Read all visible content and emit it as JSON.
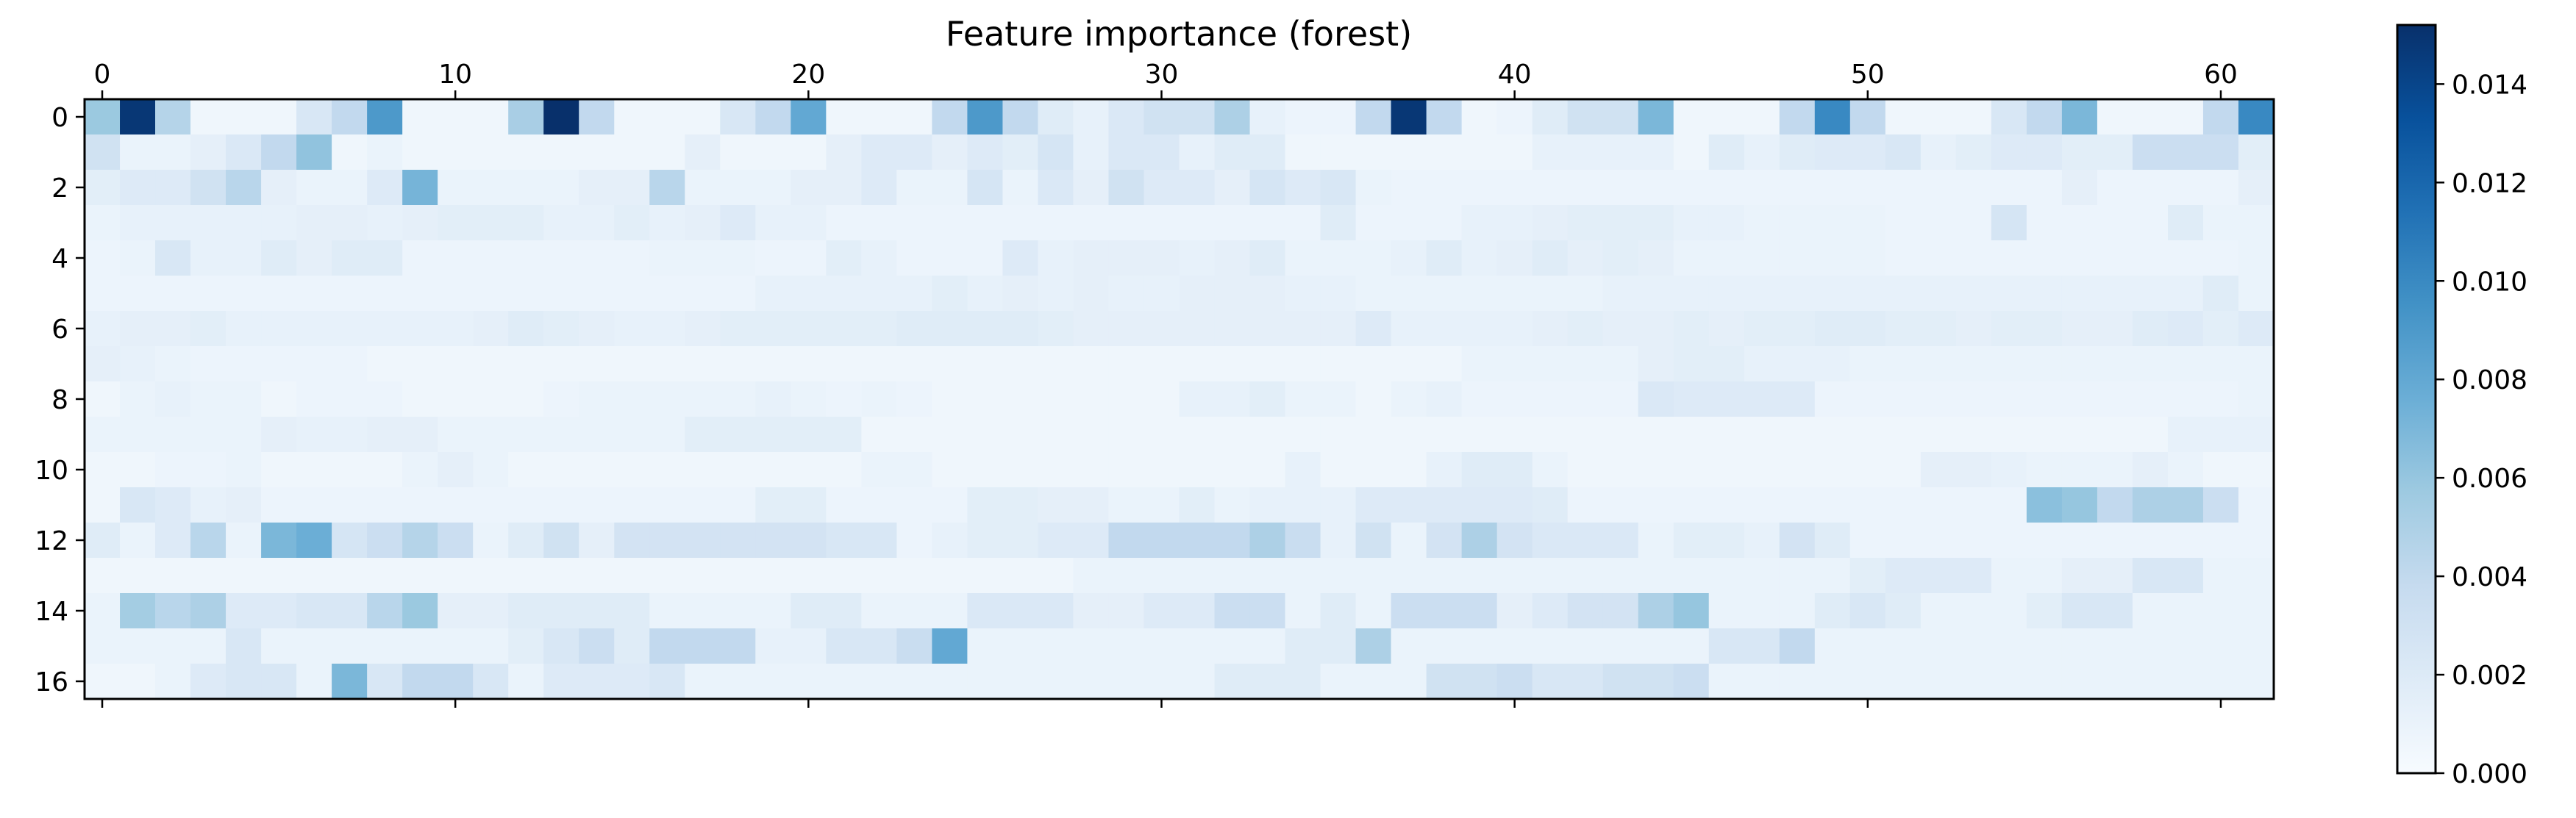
{
  "chart_data": {
    "type": "heatmap",
    "title": "Feature importance (forest)",
    "xlabel": "",
    "ylabel": "",
    "x_ticks": [
      0,
      10,
      20,
      30,
      40,
      50,
      60
    ],
    "y_ticks": [
      0,
      2,
      4,
      6,
      8,
      10,
      12,
      14,
      16
    ],
    "x_tick_position": "top-and-bottom",
    "n_cols": 62,
    "n_rows": 17,
    "colormap": "Blues",
    "color_low": "#f7fbff",
    "color_high": "#08306b",
    "vmin": 0.0,
    "vmax": 0.0152,
    "colorbar_ticks": [
      "0.000",
      "0.002",
      "0.004",
      "0.006",
      "0.008",
      "0.010",
      "0.012",
      "0.014"
    ],
    "grid": false,
    "values": [
      [
        0.0058,
        0.0148,
        0.0046,
        0.0006,
        0.0006,
        0.0006,
        0.0024,
        0.004,
        0.009,
        0.0006,
        0.0006,
        0.0006,
        0.0052,
        0.0152,
        0.004,
        0.0006,
        0.0006,
        0.0006,
        0.0024,
        0.004,
        0.008,
        0.0006,
        0.0006,
        0.0006,
        0.004,
        0.009,
        0.004,
        0.0018,
        0.0012,
        0.0022,
        0.003,
        0.003,
        0.005,
        0.0012,
        0.0008,
        0.0008,
        0.004,
        0.0148,
        0.004,
        0.0006,
        0.0008,
        0.0018,
        0.003,
        0.003,
        0.007,
        0.0006,
        0.0006,
        0.0006,
        0.004,
        0.01,
        0.004,
        0.0006,
        0.0006,
        0.0006,
        0.0024,
        0.004,
        0.007,
        0.0006,
        0.0006,
        0.0006,
        0.004,
        0.01
      ],
      [
        0.003,
        0.001,
        0.001,
        0.0014,
        0.0022,
        0.004,
        0.0062,
        0.0006,
        0.001,
        0.0006,
        0.0006,
        0.0006,
        0.0006,
        0.0006,
        0.0006,
        0.0006,
        0.0006,
        0.0014,
        0.0006,
        0.0006,
        0.0006,
        0.0014,
        0.002,
        0.002,
        0.0014,
        0.002,
        0.0016,
        0.0026,
        0.0012,
        0.0022,
        0.0022,
        0.0012,
        0.0018,
        0.0018,
        0.0006,
        0.0006,
        0.0006,
        0.0006,
        0.0006,
        0.0006,
        0.0006,
        0.0012,
        0.0012,
        0.0012,
        0.0012,
        0.0006,
        0.0018,
        0.0012,
        0.0018,
        0.002,
        0.002,
        0.0024,
        0.0012,
        0.0016,
        0.002,
        0.002,
        0.0016,
        0.0016,
        0.0034,
        0.0034,
        0.0034,
        0.0016
      ],
      [
        0.0016,
        0.002,
        0.002,
        0.003,
        0.0044,
        0.0014,
        0.001,
        0.001,
        0.002,
        0.0072,
        0.001,
        0.001,
        0.001,
        0.001,
        0.0014,
        0.0014,
        0.0044,
        0.001,
        0.001,
        0.001,
        0.0014,
        0.0014,
        0.002,
        0.001,
        0.001,
        0.0026,
        0.001,
        0.0022,
        0.0014,
        0.003,
        0.002,
        0.002,
        0.0014,
        0.0026,
        0.002,
        0.0024,
        0.001,
        0.0008,
        0.0008,
        0.0008,
        0.0008,
        0.0008,
        0.0008,
        0.0008,
        0.0008,
        0.0008,
        0.0008,
        0.0008,
        0.0008,
        0.0008,
        0.0008,
        0.0008,
        0.0008,
        0.0008,
        0.0008,
        0.0008,
        0.0014,
        0.0008,
        0.0008,
        0.0008,
        0.0008,
        0.0014
      ],
      [
        0.001,
        0.0012,
        0.0012,
        0.0012,
        0.0012,
        0.0012,
        0.0014,
        0.0014,
        0.0012,
        0.0014,
        0.0016,
        0.0016,
        0.0016,
        0.0012,
        0.0012,
        0.0016,
        0.0012,
        0.0014,
        0.002,
        0.0012,
        0.0012,
        0.0008,
        0.0008,
        0.0008,
        0.0008,
        0.0008,
        0.0008,
        0.0008,
        0.0008,
        0.0008,
        0.0008,
        0.0008,
        0.0008,
        0.0008,
        0.0008,
        0.0018,
        0.0008,
        0.0008,
        0.0008,
        0.0012,
        0.0012,
        0.0014,
        0.0016,
        0.0016,
        0.0016,
        0.0012,
        0.0012,
        0.001,
        0.001,
        0.001,
        0.001,
        0.0008,
        0.0008,
        0.0008,
        0.0026,
        0.0008,
        0.0008,
        0.0008,
        0.0008,
        0.0018,
        0.001,
        0.001
      ],
      [
        0.0008,
        0.001,
        0.0024,
        0.0012,
        0.0012,
        0.0018,
        0.0014,
        0.0018,
        0.0018,
        0.0008,
        0.0008,
        0.0008,
        0.0008,
        0.0008,
        0.0008,
        0.0008,
        0.001,
        0.001,
        0.001,
        0.0008,
        0.0008,
        0.0016,
        0.0012,
        0.0008,
        0.0008,
        0.0008,
        0.002,
        0.0012,
        0.0014,
        0.0014,
        0.0014,
        0.0012,
        0.0014,
        0.0018,
        0.001,
        0.001,
        0.001,
        0.0012,
        0.0018,
        0.0012,
        0.0014,
        0.0018,
        0.0014,
        0.0016,
        0.0014,
        0.001,
        0.001,
        0.001,
        0.001,
        0.001,
        0.001,
        0.0008,
        0.0008,
        0.0008,
        0.0008,
        0.0008,
        0.0008,
        0.0008,
        0.0008,
        0.0008,
        0.0008,
        0.001
      ],
      [
        0.0008,
        0.0008,
        0.0008,
        0.0008,
        0.0008,
        0.0008,
        0.0008,
        0.0008,
        0.0008,
        0.0008,
        0.0008,
        0.0008,
        0.0008,
        0.0008,
        0.0008,
        0.0008,
        0.0008,
        0.0008,
        0.0008,
        0.0012,
        0.0012,
        0.0012,
        0.0012,
        0.0012,
        0.0016,
        0.0012,
        0.0014,
        0.0012,
        0.0014,
        0.0012,
        0.0012,
        0.0014,
        0.0014,
        0.0014,
        0.0012,
        0.0012,
        0.001,
        0.001,
        0.001,
        0.001,
        0.001,
        0.001,
        0.001,
        0.0012,
        0.0012,
        0.0012,
        0.0012,
        0.0012,
        0.0012,
        0.0012,
        0.0012,
        0.0012,
        0.0012,
        0.0012,
        0.0012,
        0.0012,
        0.0012,
        0.0012,
        0.0012,
        0.0012,
        0.0018,
        0.001
      ],
      [
        0.0012,
        0.0014,
        0.0014,
        0.0016,
        0.0012,
        0.0012,
        0.0012,
        0.0012,
        0.0012,
        0.0012,
        0.0012,
        0.0014,
        0.0018,
        0.0016,
        0.0014,
        0.0012,
        0.0012,
        0.0014,
        0.0016,
        0.0016,
        0.0016,
        0.0016,
        0.0016,
        0.0018,
        0.0018,
        0.0018,
        0.0018,
        0.0016,
        0.0014,
        0.0014,
        0.0014,
        0.0014,
        0.0014,
        0.0014,
        0.0014,
        0.0014,
        0.002,
        0.0012,
        0.0012,
        0.0012,
        0.0012,
        0.0014,
        0.0016,
        0.0014,
        0.0014,
        0.0016,
        0.0014,
        0.0016,
        0.0016,
        0.0018,
        0.0018,
        0.0016,
        0.0016,
        0.0014,
        0.0016,
        0.0016,
        0.0014,
        0.0014,
        0.0018,
        0.002,
        0.0016,
        0.002
      ],
      [
        0.0014,
        0.0012,
        0.001,
        0.0008,
        0.0008,
        0.0008,
        0.0008,
        0.0008,
        0.0006,
        0.0006,
        0.0006,
        0.0006,
        0.0006,
        0.0006,
        0.0006,
        0.0006,
        0.0006,
        0.0006,
        0.0006,
        0.0006,
        0.0006,
        0.0006,
        0.0006,
        0.0006,
        0.0006,
        0.0006,
        0.0006,
        0.0006,
        0.0006,
        0.0006,
        0.0006,
        0.0006,
        0.0006,
        0.0006,
        0.0006,
        0.0006,
        0.0006,
        0.0006,
        0.0006,
        0.001,
        0.001,
        0.001,
        0.001,
        0.001,
        0.0014,
        0.0016,
        0.0016,
        0.0012,
        0.0012,
        0.0012,
        0.001,
        0.001,
        0.001,
        0.001,
        0.001,
        0.001,
        0.001,
        0.001,
        0.001,
        0.001,
        0.001,
        0.001
      ],
      [
        0.0006,
        0.001,
        0.0012,
        0.001,
        0.001,
        0.0006,
        0.0008,
        0.0008,
        0.0008,
        0.0006,
        0.0006,
        0.0006,
        0.0006,
        0.0008,
        0.001,
        0.001,
        0.001,
        0.001,
        0.001,
        0.0012,
        0.001,
        0.0008,
        0.001,
        0.0008,
        0.0006,
        0.0006,
        0.0006,
        0.0006,
        0.0006,
        0.0006,
        0.0006,
        0.0012,
        0.0012,
        0.0016,
        0.001,
        0.001,
        0.0006,
        0.001,
        0.0012,
        0.0008,
        0.0008,
        0.0008,
        0.0008,
        0.0008,
        0.0022,
        0.002,
        0.002,
        0.002,
        0.002,
        0.0008,
        0.0008,
        0.0008,
        0.0008,
        0.0008,
        0.0008,
        0.0008,
        0.0008,
        0.0008,
        0.0008,
        0.0008,
        0.0008,
        0.001
      ],
      [
        0.001,
        0.001,
        0.001,
        0.001,
        0.001,
        0.0014,
        0.0012,
        0.0012,
        0.0014,
        0.0014,
        0.001,
        0.001,
        0.001,
        0.001,
        0.001,
        0.001,
        0.001,
        0.0016,
        0.0016,
        0.0016,
        0.0016,
        0.0016,
        0.0006,
        0.0006,
        0.0006,
        0.0006,
        0.0006,
        0.0006,
        0.0006,
        0.0006,
        0.0006,
        0.0006,
        0.0006,
        0.0006,
        0.0006,
        0.0006,
        0.0006,
        0.0006,
        0.0006,
        0.0006,
        0.0006,
        0.0006,
        0.0006,
        0.0006,
        0.0006,
        0.0006,
        0.0006,
        0.0006,
        0.0006,
        0.0006,
        0.0006,
        0.0006,
        0.0006,
        0.0006,
        0.0006,
        0.0006,
        0.0006,
        0.0006,
        0.0006,
        0.0012,
        0.0012,
        0.0012
      ],
      [
        0.0006,
        0.0006,
        0.0008,
        0.0008,
        0.001,
        0.0006,
        0.0006,
        0.0006,
        0.0006,
        0.001,
        0.0014,
        0.001,
        0.0006,
        0.0006,
        0.0006,
        0.0006,
        0.0006,
        0.0006,
        0.0006,
        0.0006,
        0.0006,
        0.0006,
        0.001,
        0.001,
        0.0006,
        0.0006,
        0.0006,
        0.0006,
        0.0006,
        0.0006,
        0.0006,
        0.0006,
        0.0006,
        0.0006,
        0.0012,
        0.0006,
        0.0006,
        0.0006,
        0.0012,
        0.0018,
        0.0018,
        0.001,
        0.0006,
        0.0006,
        0.0006,
        0.0006,
        0.0006,
        0.0006,
        0.0006,
        0.0006,
        0.0006,
        0.0006,
        0.0014,
        0.0014,
        0.0012,
        0.001,
        0.001,
        0.001,
        0.0014,
        0.001,
        0.0006,
        0.0006
      ],
      [
        0.0006,
        0.0024,
        0.002,
        0.0012,
        0.0014,
        0.0008,
        0.0008,
        0.0008,
        0.0008,
        0.0008,
        0.0008,
        0.0008,
        0.0008,
        0.0008,
        0.0008,
        0.0008,
        0.0008,
        0.0008,
        0.0008,
        0.0016,
        0.0016,
        0.0008,
        0.0008,
        0.0008,
        0.0008,
        0.0016,
        0.0016,
        0.0014,
        0.0014,
        0.001,
        0.001,
        0.0016,
        0.001,
        0.0012,
        0.0012,
        0.0012,
        0.002,
        0.002,
        0.002,
        0.002,
        0.002,
        0.0018,
        0.0008,
        0.0008,
        0.0008,
        0.0008,
        0.0008,
        0.0008,
        0.0008,
        0.0008,
        0.0008,
        0.0008,
        0.0008,
        0.0008,
        0.0008,
        0.0064,
        0.006,
        0.004,
        0.005,
        0.005,
        0.0034,
        0.0008
      ],
      [
        0.0018,
        0.001,
        0.002,
        0.0044,
        0.001,
        0.007,
        0.0076,
        0.0026,
        0.0034,
        0.0046,
        0.0034,
        0.001,
        0.0018,
        0.003,
        0.0014,
        0.0028,
        0.0028,
        0.0028,
        0.0028,
        0.0028,
        0.0028,
        0.0024,
        0.0024,
        0.0008,
        0.0012,
        0.0016,
        0.0016,
        0.002,
        0.002,
        0.004,
        0.004,
        0.004,
        0.004,
        0.005,
        0.0036,
        0.0012,
        0.003,
        0.001,
        0.0028,
        0.005,
        0.0028,
        0.0022,
        0.0022,
        0.0022,
        0.001,
        0.0016,
        0.0016,
        0.0012,
        0.0028,
        0.0018,
        0.0008,
        0.0008,
        0.0008,
        0.0008,
        0.0008,
        0.0008,
        0.0008,
        0.0008,
        0.0008,
        0.0008,
        0.0008,
        0.0008
      ],
      [
        0.0006,
        0.0006,
        0.0006,
        0.0006,
        0.0006,
        0.0006,
        0.0006,
        0.0006,
        0.0006,
        0.0006,
        0.0006,
        0.0006,
        0.0006,
        0.0006,
        0.0006,
        0.0006,
        0.0006,
        0.0006,
        0.0006,
        0.0006,
        0.0006,
        0.0006,
        0.0006,
        0.0006,
        0.0006,
        0.0006,
        0.0006,
        0.0006,
        0.001,
        0.001,
        0.001,
        0.001,
        0.001,
        0.001,
        0.001,
        0.001,
        0.001,
        0.001,
        0.001,
        0.001,
        0.001,
        0.001,
        0.001,
        0.001,
        0.001,
        0.001,
        0.001,
        0.001,
        0.001,
        0.001,
        0.0016,
        0.002,
        0.002,
        0.002,
        0.001,
        0.001,
        0.0014,
        0.0014,
        0.0024,
        0.0024,
        0.001,
        0.001
      ],
      [
        0.001,
        0.0054,
        0.0044,
        0.005,
        0.002,
        0.002,
        0.0024,
        0.0024,
        0.0044,
        0.0058,
        0.0014,
        0.0014,
        0.0018,
        0.0018,
        0.0018,
        0.0018,
        0.001,
        0.001,
        0.001,
        0.001,
        0.0018,
        0.0018,
        0.001,
        0.001,
        0.001,
        0.0022,
        0.0022,
        0.0022,
        0.0014,
        0.0014,
        0.002,
        0.002,
        0.0034,
        0.0034,
        0.001,
        0.0018,
        0.001,
        0.0034,
        0.0034,
        0.0034,
        0.0014,
        0.002,
        0.0028,
        0.0028,
        0.005,
        0.006,
        0.001,
        0.001,
        0.001,
        0.0018,
        0.0024,
        0.0018,
        0.001,
        0.001,
        0.001,
        0.0016,
        0.0024,
        0.0024,
        0.001,
        0.001,
        0.001,
        0.001
      ],
      [
        0.001,
        0.001,
        0.001,
        0.001,
        0.0024,
        0.001,
        0.001,
        0.001,
        0.001,
        0.001,
        0.001,
        0.001,
        0.0016,
        0.0024,
        0.0034,
        0.0018,
        0.004,
        0.004,
        0.004,
        0.0012,
        0.0012,
        0.0024,
        0.0024,
        0.0036,
        0.008,
        0.001,
        0.001,
        0.001,
        0.001,
        0.001,
        0.001,
        0.001,
        0.001,
        0.001,
        0.0018,
        0.0018,
        0.005,
        0.001,
        0.001,
        0.001,
        0.001,
        0.001,
        0.001,
        0.001,
        0.001,
        0.001,
        0.0024,
        0.0024,
        0.004,
        0.001,
        0.001,
        0.001,
        0.001,
        0.001,
        0.001,
        0.001,
        0.001,
        0.001,
        0.001,
        0.001,
        0.001,
        0.001
      ],
      [
        0.0006,
        0.0006,
        0.001,
        0.002,
        0.0024,
        0.0024,
        0.001,
        0.007,
        0.0024,
        0.004,
        0.004,
        0.0024,
        0.001,
        0.002,
        0.002,
        0.002,
        0.0024,
        0.001,
        0.001,
        0.001,
        0.001,
        0.001,
        0.001,
        0.001,
        0.001,
        0.001,
        0.001,
        0.001,
        0.001,
        0.001,
        0.001,
        0.001,
        0.0018,
        0.0018,
        0.0018,
        0.001,
        0.001,
        0.001,
        0.003,
        0.003,
        0.0034,
        0.0024,
        0.0024,
        0.003,
        0.003,
        0.0034,
        0.001,
        0.001,
        0.001,
        0.001,
        0.001,
        0.001,
        0.001,
        0.001,
        0.001,
        0.001,
        0.001,
        0.001,
        0.001,
        0.001,
        0.001,
        0.001
      ]
    ]
  }
}
